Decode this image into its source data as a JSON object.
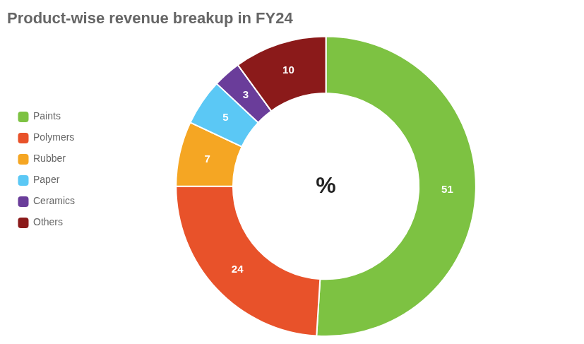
{
  "chart_data": {
    "type": "doughnut",
    "title": "Product-wise revenue breakup in FY24",
    "categories": [
      "Paints",
      "Polymers",
      "Rubber",
      "Paper",
      "Ceramics",
      "Others"
    ],
    "values": [
      51,
      24,
      7,
      5,
      3,
      10
    ],
    "colors": [
      "#7dc242",
      "#e8522a",
      "#f5a623",
      "#5bc8f5",
      "#6a3d9a",
      "#8b1a1a"
    ],
    "annotations": [
      "%"
    ],
    "data_labels": true,
    "legend": "left"
  }
}
